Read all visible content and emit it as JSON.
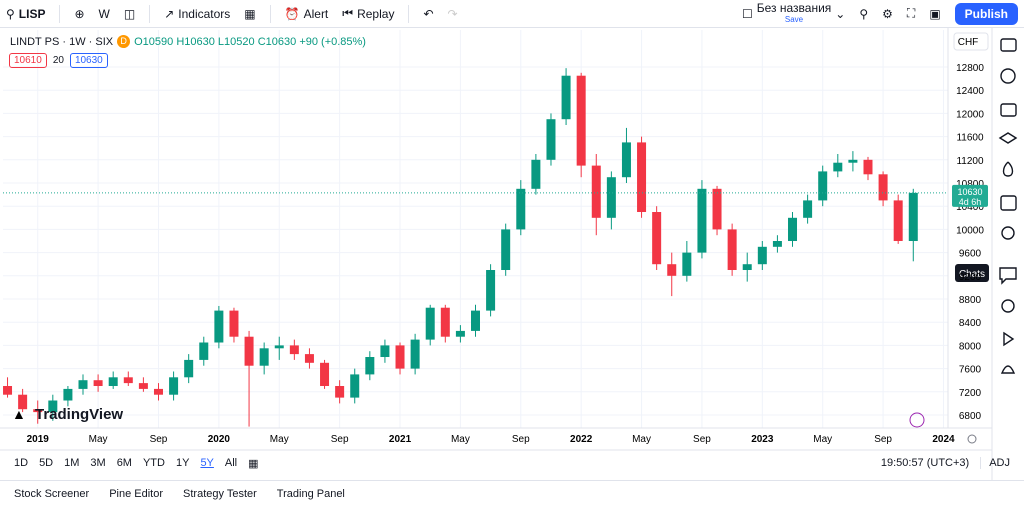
{
  "toolbar": {
    "symbol": "LISP",
    "interval": "W",
    "indicators": "Indicators",
    "alert": "Alert",
    "replay": "Replay",
    "layout_name": "Без названия",
    "save": "Save",
    "publish": "Publish"
  },
  "legend": {
    "title": "LINDT PS · 1W · SIX",
    "badge": "D",
    "open_label": "O",
    "open": 10590,
    "high_label": "H",
    "high": 10630,
    "low_label": "L",
    "low": 10520,
    "close_label": "C",
    "close": 10630,
    "change": "+90 (+0.85%)",
    "bid": 10610,
    "spread": 20,
    "ask": 10630
  },
  "currency": "CHF",
  "tooltip": "Chats",
  "watermark": "TradingView",
  "chart_data": {
    "type": "candlestick",
    "open": [
      7300,
      7150,
      6900,
      6850,
      7050,
      7250,
      7400,
      7300,
      7450,
      7350,
      7250,
      7150,
      7450,
      7750,
      8050,
      8600,
      8150,
      7650,
      7950,
      8000,
      7850,
      7700,
      7300,
      7100,
      7500,
      7800,
      8000,
      7600,
      8100,
      8650,
      8150,
      8250,
      8600,
      9300,
      10000,
      10700,
      11200,
      11900,
      12650,
      11100,
      10200,
      10900,
      11500,
      10300,
      9400,
      9200,
      9600,
      10700,
      10000,
      9300,
      9400,
      9700,
      9800,
      10200,
      10500,
      11000,
      11150,
      11200,
      10950,
      10500,
      9800
    ],
    "high": [
      7450,
      7250,
      7050,
      7150,
      7300,
      7500,
      7500,
      7550,
      7550,
      7450,
      7350,
      7550,
      7850,
      8150,
      8680,
      8650,
      8250,
      8050,
      8150,
      8100,
      7950,
      7750,
      7400,
      7600,
      7900,
      8100,
      8050,
      8200,
      8700,
      8700,
      8350,
      8700,
      9400,
      10100,
      10850,
      11300,
      12000,
      12780,
      12700,
      11300,
      11000,
      11750,
      11600,
      10400,
      9600,
      9800,
      10850,
      10750,
      10100,
      9600,
      9800,
      9900,
      10300,
      10600,
      11100,
      11300,
      11350,
      11250,
      11000,
      10600,
      10700
    ],
    "low": [
      7100,
      6850,
      6650,
      6700,
      6950,
      7150,
      7200,
      7250,
      7300,
      7200,
      7050,
      7050,
      7350,
      7650,
      7950,
      8050,
      6600,
      7500,
      7750,
      7750,
      7600,
      7250,
      7000,
      7000,
      7400,
      7700,
      7500,
      7500,
      8000,
      8050,
      8050,
      8150,
      8500,
      9200,
      9900,
      10600,
      11100,
      11800,
      10900,
      9900,
      10000,
      10800,
      10200,
      9300,
      8850,
      9100,
      9500,
      9900,
      9200,
      9100,
      9300,
      9600,
      9700,
      10100,
      10400,
      10900,
      11000,
      10850,
      10400,
      9750,
      9450
    ],
    "close": [
      7150,
      6900,
      6850,
      7050,
      7250,
      7400,
      7300,
      7450,
      7350,
      7250,
      7150,
      7450,
      7750,
      8050,
      8600,
      8150,
      7650,
      7950,
      8000,
      7850,
      7700,
      7300,
      7100,
      7500,
      7800,
      8000,
      7600,
      8100,
      8650,
      8150,
      8250,
      8600,
      9300,
      10000,
      10700,
      11200,
      11900,
      12650,
      11100,
      10200,
      10900,
      11500,
      10300,
      9400,
      9200,
      9600,
      10700,
      10000,
      9300,
      9400,
      9700,
      9800,
      10200,
      10500,
      11000,
      11150,
      11200,
      10950,
      10500,
      9800,
      10630
    ],
    "up_color": "#089981",
    "down_color": "#f23645",
    "xlim": [
      -0.3,
      62.3
    ],
    "xticks": [
      {
        "value": 2,
        "label": "2019"
      },
      {
        "value": 6,
        "label": "May"
      },
      {
        "value": 10,
        "label": "Sep"
      },
      {
        "value": 14,
        "label": "2020"
      },
      {
        "value": 18,
        "label": "May"
      },
      {
        "value": 22,
        "label": "Sep"
      },
      {
        "value": 26,
        "label": "2021"
      },
      {
        "value": 30,
        "label": "May"
      },
      {
        "value": 34,
        "label": "Sep"
      },
      {
        "value": 38,
        "label": "2022"
      },
      {
        "value": 42,
        "label": "May"
      },
      {
        "value": 46,
        "label": "Sep"
      },
      {
        "value": 50,
        "label": "2023"
      },
      {
        "value": 54,
        "label": "May"
      },
      {
        "value": 58,
        "label": "Sep"
      },
      {
        "value": 62,
        "label": "2024"
      }
    ],
    "ylim": [
      6576,
      13438
    ],
    "yticks": [
      6800,
      7200,
      7600,
      8000,
      8400,
      8800,
      9200,
      9600,
      10000,
      10400,
      10800,
      11200,
      11600,
      12000,
      12400,
      12800
    ],
    "grid": true,
    "last_price": 10630,
    "countdown": "4d 6h",
    "last_price_color": "#22ab94"
  },
  "timeframes": [
    "1D",
    "5D",
    "1M",
    "3M",
    "6M",
    "YTD",
    "1Y",
    "5Y",
    "All"
  ],
  "clock": "19:50:57 (UTC+3)",
  "adj": "ADJ",
  "panel": [
    "Stock Screener",
    "Pine Editor",
    "Strategy Tester",
    "Trading Panel"
  ]
}
